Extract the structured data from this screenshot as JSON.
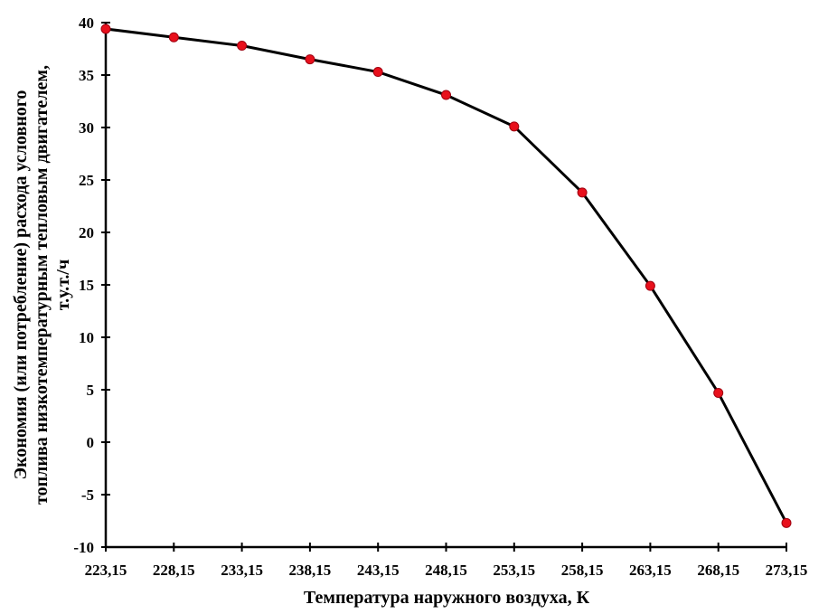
{
  "chart_data": {
    "type": "line",
    "title": "",
    "xlabel": "Температура наружного воздуха, К",
    "ylabel_lines": [
      "Экономия (или потребление) расхода условного",
      "топлива  низкотемпературным тепловым двигателем,",
      "т.у.т./ч"
    ],
    "categories": [
      "223,15",
      "228,15",
      "233,15",
      "238,15",
      "243,15",
      "248,15",
      "253,15",
      "258,15",
      "263,15",
      "268,15",
      "273,15"
    ],
    "values": [
      39.4,
      38.6,
      37.8,
      36.5,
      35.3,
      33.1,
      30.1,
      23.8,
      14.9,
      4.7,
      -7.7
    ],
    "ylim": [
      -10,
      40
    ],
    "yticks": [
      -10,
      -5,
      0,
      5,
      10,
      15,
      20,
      25,
      30,
      35,
      40
    ],
    "grid": false,
    "line_color": "#000000",
    "marker_color": "#e8101c"
  }
}
